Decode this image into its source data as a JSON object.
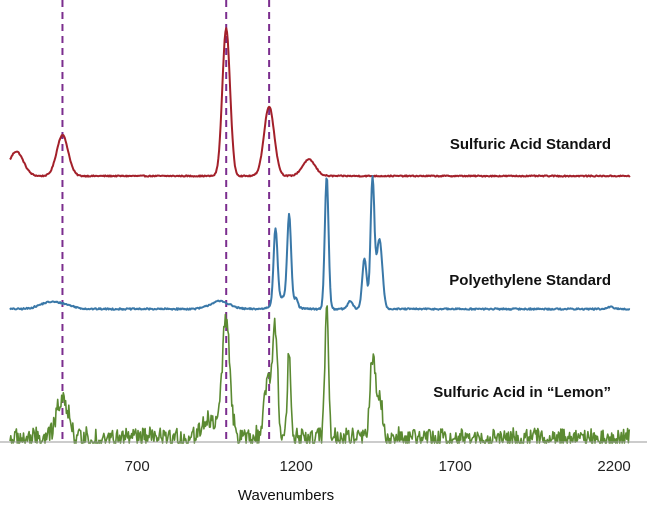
{
  "chart_data": {
    "type": "line",
    "title": "",
    "xlabel": "Wavenumbers",
    "ylabel": "",
    "xlim": [
      300,
      2250
    ],
    "xticks": [
      700,
      1200,
      1700,
      2200
    ],
    "grid": false,
    "reference_lines": [
      {
        "x": 465,
        "color": "#7b2d8e",
        "style": "dashed"
      },
      {
        "x": 980,
        "color": "#7b2d8e",
        "style": "dashed"
      },
      {
        "x": 1115,
        "color": "#7b2d8e",
        "style": "dashed"
      }
    ],
    "series": [
      {
        "name": "Sulfuric Acid Standard",
        "color": "#a3202a",
        "noise": 0.003,
        "x_range": [
          300,
          2250
        ],
        "peaks": [
          {
            "x": 320,
            "height": 0.12,
            "width": 22
          },
          {
            "x": 465,
            "height": 0.2,
            "width": 18
          },
          {
            "x": 980,
            "height": 0.72,
            "width": 12
          },
          {
            "x": 1115,
            "height": 0.34,
            "width": 16
          },
          {
            "x": 1240,
            "height": 0.08,
            "width": 20
          }
        ]
      },
      {
        "name": "Polyethylene Standard",
        "color": "#3a78a8",
        "noise": 0.004,
        "x_range": [
          300,
          2250
        ],
        "peaks": [
          {
            "x": 420,
            "height": 0.03,
            "width": 30
          },
          {
            "x": 470,
            "height": 0.02,
            "width": 30
          },
          {
            "x": 960,
            "height": 0.04,
            "width": 30
          },
          {
            "x": 1135,
            "height": 0.38,
            "width": 6
          },
          {
            "x": 1178,
            "height": 0.44,
            "width": 6
          },
          {
            "x": 1160,
            "height": 0.06,
            "width": 25
          },
          {
            "x": 1200,
            "height": 0.04,
            "width": 5
          },
          {
            "x": 1296,
            "height": 0.68,
            "width": 6
          },
          {
            "x": 1370,
            "height": 0.04,
            "width": 8
          },
          {
            "x": 1415,
            "height": 0.26,
            "width": 7
          },
          {
            "x": 1440,
            "height": 0.66,
            "width": 6
          },
          {
            "x": 1462,
            "height": 0.36,
            "width": 9
          },
          {
            "x": 2190,
            "height": 0.01,
            "width": 10
          }
        ]
      },
      {
        "name": "Sulfuric Acid in “Lemon”",
        "color": "#5b8a32",
        "noise": 0.05,
        "x_range": [
          300,
          2250
        ],
        "peaks": [
          {
            "x": 465,
            "height": 0.22,
            "width": 18
          },
          {
            "x": 925,
            "height": 0.1,
            "width": 25
          },
          {
            "x": 980,
            "height": 0.6,
            "width": 12
          },
          {
            "x": 1115,
            "height": 0.3,
            "width": 14
          },
          {
            "x": 1135,
            "height": 0.45,
            "width": 7
          },
          {
            "x": 1178,
            "height": 0.42,
            "width": 6
          },
          {
            "x": 1296,
            "height": 0.65,
            "width": 6
          },
          {
            "x": 1440,
            "height": 0.4,
            "width": 8
          },
          {
            "x": 1462,
            "height": 0.2,
            "width": 10
          }
        ]
      }
    ]
  }
}
